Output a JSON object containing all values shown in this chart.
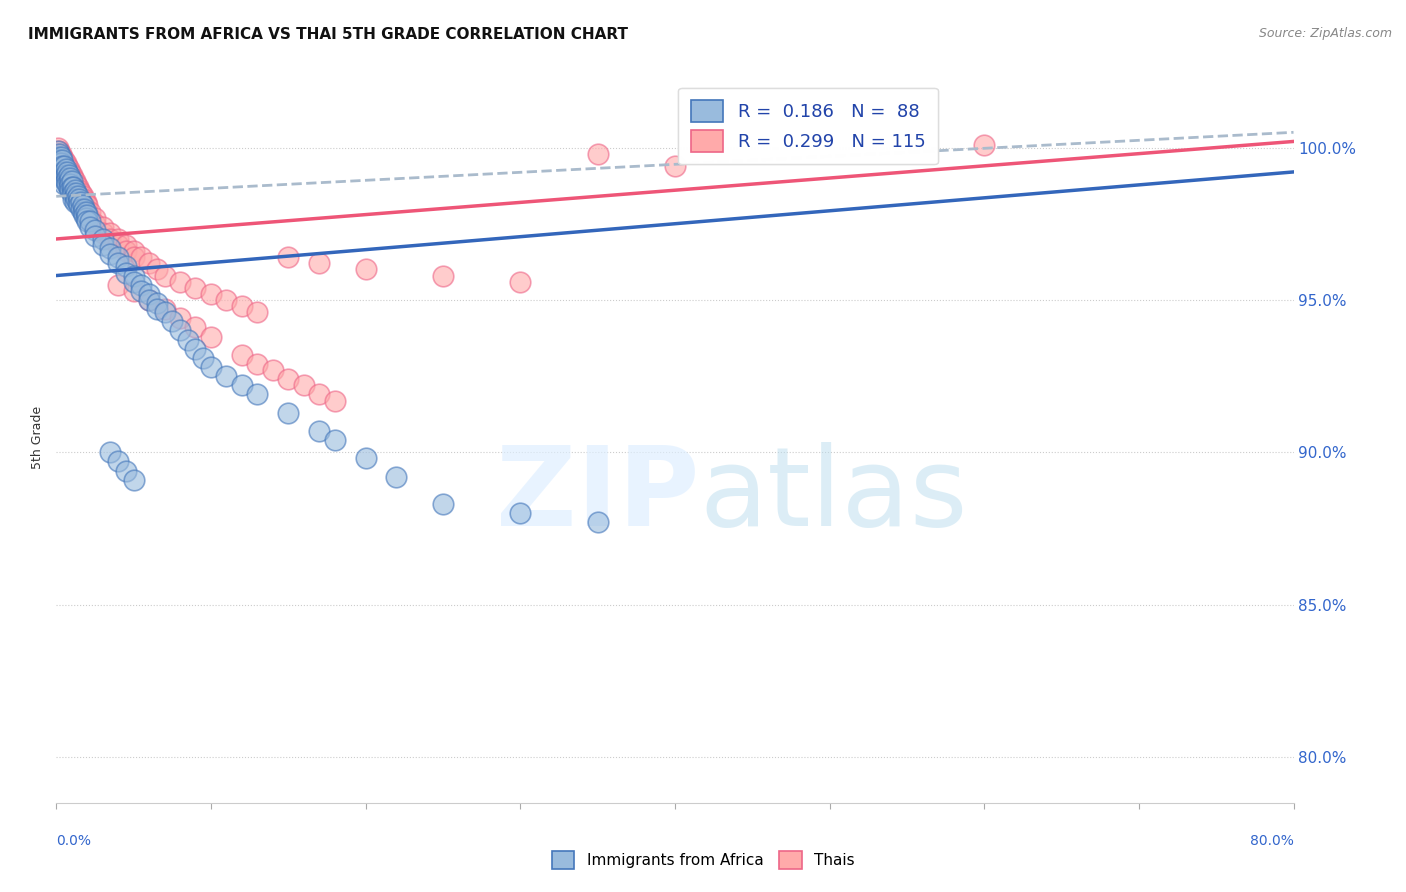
{
  "title": "IMMIGRANTS FROM AFRICA VS THAI 5TH GRADE CORRELATION CHART",
  "source": "Source: ZipAtlas.com",
  "ylabel": "5th Grade",
  "ytick_labels": [
    "100.0%",
    "95.0%",
    "90.0%",
    "85.0%",
    "80.0%"
  ],
  "ytick_values": [
    1.0,
    0.95,
    0.9,
    0.85,
    0.8
  ],
  "xmin": 0.0,
  "xmax": 0.8,
  "ymin": 0.785,
  "ymax": 1.025,
  "color_blue": "#99BBDD",
  "color_pink": "#FFAAAA",
  "edge_blue": "#4477BB",
  "edge_pink": "#EE6688",
  "trend_blue_color": "#3366BB",
  "trend_pink_color": "#EE5577",
  "trend_dashed_color": "#AABBCC",
  "blue_trend_x": [
    0.0,
    0.8
  ],
  "blue_trend_y": [
    0.958,
    0.992
  ],
  "pink_trend_x": [
    0.0,
    0.8
  ],
  "pink_trend_y": [
    0.97,
    1.002
  ],
  "dashed_trend_x": [
    0.0,
    0.8
  ],
  "dashed_trend_y": [
    0.984,
    1.005
  ],
  "blue_scatter": [
    [
      0.001,
      0.999
    ],
    [
      0.001,
      0.997
    ],
    [
      0.001,
      0.996
    ],
    [
      0.001,
      0.995
    ],
    [
      0.001,
      0.993
    ],
    [
      0.002,
      0.998
    ],
    [
      0.002,
      0.996
    ],
    [
      0.002,
      0.995
    ],
    [
      0.002,
      0.993
    ],
    [
      0.002,
      0.991
    ],
    [
      0.003,
      0.997
    ],
    [
      0.003,
      0.995
    ],
    [
      0.003,
      0.993
    ],
    [
      0.003,
      0.991
    ],
    [
      0.004,
      0.996
    ],
    [
      0.004,
      0.994
    ],
    [
      0.004,
      0.992
    ],
    [
      0.004,
      0.99
    ],
    [
      0.005,
      0.994
    ],
    [
      0.005,
      0.992
    ],
    [
      0.005,
      0.99
    ],
    [
      0.005,
      0.988
    ],
    [
      0.006,
      0.993
    ],
    [
      0.006,
      0.991
    ],
    [
      0.006,
      0.989
    ],
    [
      0.007,
      0.992
    ],
    [
      0.007,
      0.99
    ],
    [
      0.007,
      0.988
    ],
    [
      0.008,
      0.991
    ],
    [
      0.008,
      0.989
    ],
    [
      0.008,
      0.987
    ],
    [
      0.009,
      0.99
    ],
    [
      0.009,
      0.988
    ],
    [
      0.009,
      0.986
    ],
    [
      0.01,
      0.989
    ],
    [
      0.01,
      0.987
    ],
    [
      0.01,
      0.985
    ],
    [
      0.011,
      0.987
    ],
    [
      0.011,
      0.985
    ],
    [
      0.011,
      0.983
    ],
    [
      0.012,
      0.986
    ],
    [
      0.012,
      0.984
    ],
    [
      0.012,
      0.982
    ],
    [
      0.013,
      0.985
    ],
    [
      0.013,
      0.983
    ],
    [
      0.014,
      0.984
    ],
    [
      0.014,
      0.982
    ],
    [
      0.015,
      0.983
    ],
    [
      0.015,
      0.981
    ],
    [
      0.016,
      0.982
    ],
    [
      0.016,
      0.98
    ],
    [
      0.017,
      0.981
    ],
    [
      0.017,
      0.979
    ],
    [
      0.018,
      0.98
    ],
    [
      0.018,
      0.978
    ],
    [
      0.019,
      0.979
    ],
    [
      0.019,
      0.977
    ],
    [
      0.02,
      0.978
    ],
    [
      0.02,
      0.976
    ],
    [
      0.022,
      0.976
    ],
    [
      0.022,
      0.974
    ],
    [
      0.025,
      0.973
    ],
    [
      0.025,
      0.971
    ],
    [
      0.03,
      0.97
    ],
    [
      0.03,
      0.968
    ],
    [
      0.035,
      0.967
    ],
    [
      0.035,
      0.965
    ],
    [
      0.04,
      0.964
    ],
    [
      0.04,
      0.962
    ],
    [
      0.045,
      0.961
    ],
    [
      0.045,
      0.959
    ],
    [
      0.05,
      0.958
    ],
    [
      0.05,
      0.956
    ],
    [
      0.055,
      0.955
    ],
    [
      0.055,
      0.953
    ],
    [
      0.06,
      0.952
    ],
    [
      0.06,
      0.95
    ],
    [
      0.065,
      0.949
    ],
    [
      0.065,
      0.947
    ],
    [
      0.07,
      0.946
    ],
    [
      0.075,
      0.943
    ],
    [
      0.08,
      0.94
    ],
    [
      0.085,
      0.937
    ],
    [
      0.09,
      0.934
    ],
    [
      0.095,
      0.931
    ],
    [
      0.1,
      0.928
    ],
    [
      0.11,
      0.925
    ],
    [
      0.12,
      0.922
    ],
    [
      0.13,
      0.919
    ],
    [
      0.15,
      0.913
    ],
    [
      0.17,
      0.907
    ],
    [
      0.18,
      0.904
    ],
    [
      0.2,
      0.898
    ],
    [
      0.22,
      0.892
    ],
    [
      0.25,
      0.883
    ],
    [
      0.3,
      0.88
    ],
    [
      0.35,
      0.877
    ],
    [
      0.035,
      0.9
    ],
    [
      0.04,
      0.897
    ],
    [
      0.045,
      0.894
    ],
    [
      0.05,
      0.891
    ]
  ],
  "pink_scatter": [
    [
      0.001,
      1.0
    ],
    [
      0.001,
      0.998
    ],
    [
      0.001,
      0.997
    ],
    [
      0.001,
      0.995
    ],
    [
      0.002,
      0.999
    ],
    [
      0.002,
      0.997
    ],
    [
      0.002,
      0.995
    ],
    [
      0.002,
      0.993
    ],
    [
      0.003,
      0.998
    ],
    [
      0.003,
      0.996
    ],
    [
      0.003,
      0.994
    ],
    [
      0.004,
      0.997
    ],
    [
      0.004,
      0.995
    ],
    [
      0.004,
      0.993
    ],
    [
      0.005,
      0.996
    ],
    [
      0.005,
      0.994
    ],
    [
      0.005,
      0.992
    ],
    [
      0.006,
      0.995
    ],
    [
      0.006,
      0.993
    ],
    [
      0.006,
      0.991
    ],
    [
      0.007,
      0.994
    ],
    [
      0.007,
      0.992
    ],
    [
      0.007,
      0.99
    ],
    [
      0.008,
      0.993
    ],
    [
      0.008,
      0.991
    ],
    [
      0.008,
      0.989
    ],
    [
      0.009,
      0.992
    ],
    [
      0.009,
      0.99
    ],
    [
      0.009,
      0.988
    ],
    [
      0.01,
      0.991
    ],
    [
      0.01,
      0.989
    ],
    [
      0.01,
      0.987
    ],
    [
      0.011,
      0.99
    ],
    [
      0.011,
      0.988
    ],
    [
      0.012,
      0.989
    ],
    [
      0.012,
      0.987
    ],
    [
      0.013,
      0.988
    ],
    [
      0.013,
      0.986
    ],
    [
      0.014,
      0.987
    ],
    [
      0.014,
      0.985
    ],
    [
      0.015,
      0.986
    ],
    [
      0.015,
      0.984
    ],
    [
      0.016,
      0.985
    ],
    [
      0.016,
      0.983
    ],
    [
      0.017,
      0.984
    ],
    [
      0.017,
      0.982
    ],
    [
      0.018,
      0.983
    ],
    [
      0.018,
      0.981
    ],
    [
      0.019,
      0.982
    ],
    [
      0.019,
      0.98
    ],
    [
      0.02,
      0.981
    ],
    [
      0.02,
      0.979
    ],
    [
      0.022,
      0.979
    ],
    [
      0.022,
      0.977
    ],
    [
      0.025,
      0.977
    ],
    [
      0.025,
      0.975
    ],
    [
      0.03,
      0.974
    ],
    [
      0.03,
      0.972
    ],
    [
      0.035,
      0.972
    ],
    [
      0.035,
      0.97
    ],
    [
      0.04,
      0.97
    ],
    [
      0.04,
      0.968
    ],
    [
      0.045,
      0.968
    ],
    [
      0.045,
      0.966
    ],
    [
      0.05,
      0.966
    ],
    [
      0.05,
      0.964
    ],
    [
      0.055,
      0.964
    ],
    [
      0.06,
      0.962
    ],
    [
      0.065,
      0.96
    ],
    [
      0.07,
      0.958
    ],
    [
      0.08,
      0.956
    ],
    [
      0.09,
      0.954
    ],
    [
      0.1,
      0.952
    ],
    [
      0.11,
      0.95
    ],
    [
      0.12,
      0.948
    ],
    [
      0.13,
      0.946
    ],
    [
      0.15,
      0.964
    ],
    [
      0.17,
      0.962
    ],
    [
      0.2,
      0.96
    ],
    [
      0.25,
      0.958
    ],
    [
      0.3,
      0.956
    ],
    [
      0.35,
      0.998
    ],
    [
      0.4,
      0.994
    ],
    [
      0.6,
      1.001
    ],
    [
      0.04,
      0.955
    ],
    [
      0.05,
      0.953
    ],
    [
      0.06,
      0.95
    ],
    [
      0.07,
      0.947
    ],
    [
      0.08,
      0.944
    ],
    [
      0.09,
      0.941
    ],
    [
      0.1,
      0.938
    ],
    [
      0.12,
      0.932
    ],
    [
      0.13,
      0.929
    ],
    [
      0.14,
      0.927
    ],
    [
      0.15,
      0.924
    ],
    [
      0.16,
      0.922
    ],
    [
      0.17,
      0.919
    ],
    [
      0.18,
      0.917
    ]
  ]
}
